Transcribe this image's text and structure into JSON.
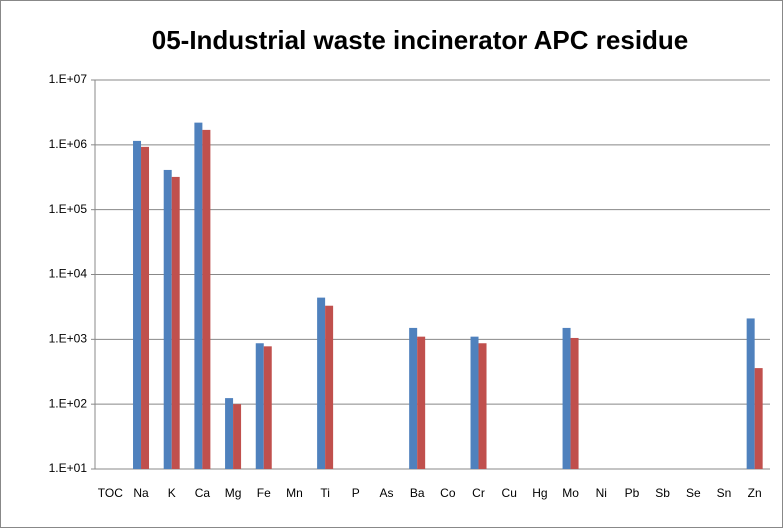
{
  "chart_data": {
    "type": "bar",
    "title": "05-Industrial waste incinerator APC residue",
    "categories": [
      "TOC",
      "Na",
      "K",
      "Ca",
      "Mg",
      "Fe",
      "Mn",
      "Ti",
      "P",
      "As",
      "Ba",
      "Co",
      "Cr",
      "Cu",
      "Hg",
      "Mo",
      "Ni",
      "Pb",
      "Sb",
      "Se",
      "Sn",
      "Zn"
    ],
    "series": [
      {
        "color": "#4f81bd",
        "values": [
          null,
          1150000,
          410000,
          2200000,
          124,
          870,
          null,
          4400,
          null,
          null,
          1500,
          null,
          1100,
          null,
          null,
          1500,
          null,
          null,
          null,
          null,
          null,
          2100
        ]
      },
      {
        "color": "#c0504d",
        "values": [
          null,
          930000,
          320000,
          1700000,
          100,
          780,
          null,
          3300,
          null,
          null,
          1100,
          null,
          870,
          null,
          null,
          1050,
          null,
          null,
          null,
          null,
          null,
          360
        ]
      }
    ],
    "ylim": [
      10,
      10000000
    ],
    "yticks": [
      {
        "value": 10,
        "label": "1.E+01"
      },
      {
        "value": 100,
        "label": "1.E+02"
      },
      {
        "value": 1000,
        "label": "1.E+03"
      },
      {
        "value": 10000,
        "label": "1.E+04"
      },
      {
        "value": 100000,
        "label": "1.E+05"
      },
      {
        "value": 1000000,
        "label": "1.E+06"
      },
      {
        "value": 10000000,
        "label": "1.E+07"
      }
    ],
    "log_scale": true,
    "grid": true
  }
}
